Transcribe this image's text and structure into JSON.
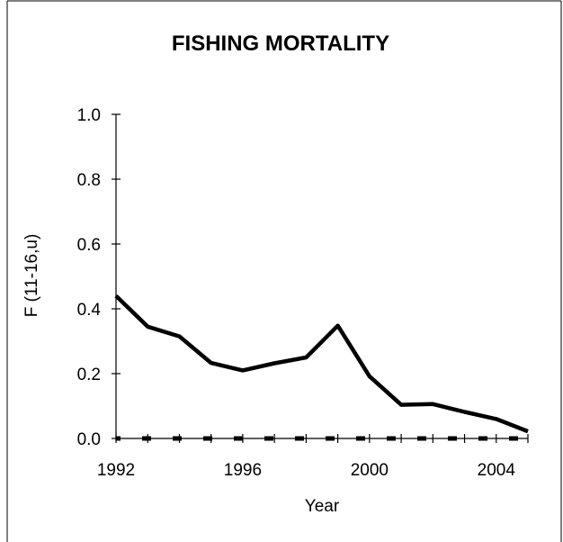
{
  "chart_data": {
    "type": "line",
    "title": "FISHING MORTALITY",
    "xlabel": "Year",
    "ylabel": "F (11-16,u)",
    "xlim": [
      1992,
      2005
    ],
    "ylim": [
      0.0,
      1.0
    ],
    "x_ticks": [
      1992,
      1996,
      2000,
      2004
    ],
    "x_tick_labels": [
      "1992",
      "1996",
      "2000",
      "2004"
    ],
    "y_ticks": [
      0.0,
      0.2,
      0.4,
      0.6,
      0.8,
      1.0
    ],
    "y_tick_labels": [
      "0.0",
      "0.2",
      "0.4",
      "0.6",
      "0.8",
      "1.0"
    ],
    "grid": false,
    "series": [
      {
        "style": "solid",
        "color": "#000000",
        "x": [
          1992,
          1993,
          1994,
          1995,
          1996,
          1997,
          1998,
          1999,
          2000,
          2001,
          2002,
          2003,
          2004,
          2005
        ],
        "values": [
          0.44,
          0.345,
          0.315,
          0.233,
          0.21,
          0.232,
          0.25,
          0.348,
          0.192,
          0.104,
          0.106,
          0.082,
          0.06,
          0.022
        ]
      },
      {
        "style": "dashed",
        "color": "#000000",
        "x": [
          1992,
          1993,
          1994,
          1995,
          1996,
          1997,
          1998,
          1999,
          2000,
          2001,
          2002,
          2003,
          2004,
          2005
        ],
        "values": [
          0,
          0,
          0,
          0,
          0,
          0,
          0,
          0,
          0,
          0,
          0,
          0,
          0,
          0
        ]
      }
    ]
  }
}
